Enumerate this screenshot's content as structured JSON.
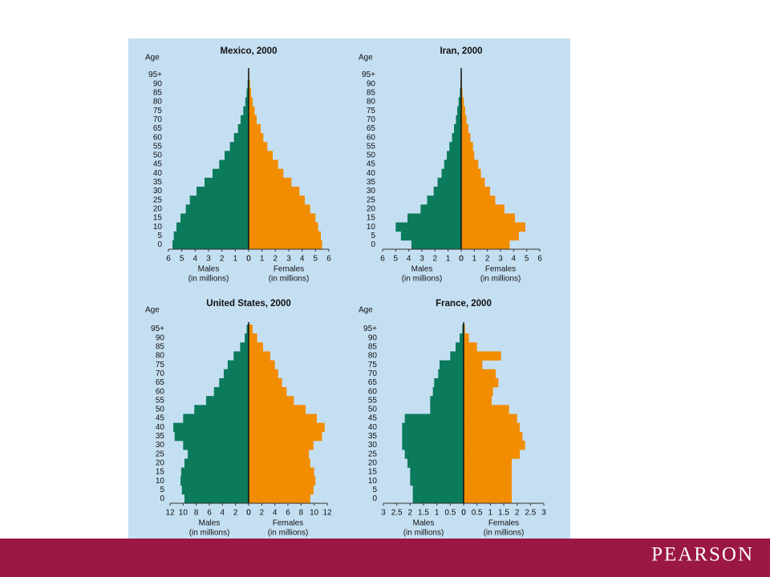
{
  "chart_data": [
    {
      "type": "pyramid",
      "title": "Mexico, 2000",
      "ylabel": "Age",
      "categories": [
        "0",
        "5",
        "10",
        "15",
        "20",
        "25",
        "30",
        "35",
        "40",
        "45",
        "50",
        "55",
        "60",
        "65",
        "70",
        "75",
        "80",
        "85",
        "90",
        "95+"
      ],
      "xlim": [
        0,
        6
      ],
      "xticks": [
        0,
        1,
        2,
        3,
        4,
        5,
        6
      ],
      "series": [
        {
          "name": "Males",
          "unit_label": "(in millions)",
          "color": "#0b7b5c",
          "values": [
            5.7,
            5.6,
            5.4,
            5.1,
            4.7,
            4.4,
            3.9,
            3.3,
            2.7,
            2.2,
            1.8,
            1.4,
            1.1,
            0.8,
            0.6,
            0.4,
            0.25,
            0.15,
            0.08,
            0.03
          ]
        },
        {
          "name": "Females",
          "unit_label": "(in millions)",
          "color": "#f28c00",
          "values": [
            5.5,
            5.4,
            5.2,
            5.0,
            4.6,
            4.2,
            3.8,
            3.2,
            2.6,
            2.2,
            1.8,
            1.4,
            1.1,
            0.9,
            0.6,
            0.45,
            0.3,
            0.18,
            0.1,
            0.04
          ]
        }
      ]
    },
    {
      "type": "pyramid",
      "title": "Iran, 2000",
      "ylabel": "Age",
      "categories": [
        "0",
        "5",
        "10",
        "15",
        "20",
        "25",
        "30",
        "35",
        "40",
        "45",
        "50",
        "55",
        "60",
        "65",
        "70",
        "75",
        "80",
        "85",
        "90",
        "95+"
      ],
      "xlim": [
        0,
        6
      ],
      "xticks": [
        0,
        1,
        2,
        3,
        4,
        5,
        6
      ],
      "series": [
        {
          "name": "Males",
          "unit_label": "(in millions)",
          "color": "#0b7b5c",
          "values": [
            3.8,
            4.6,
            5.0,
            4.1,
            3.1,
            2.6,
            2.1,
            1.8,
            1.5,
            1.3,
            1.1,
            0.9,
            0.7,
            0.55,
            0.4,
            0.3,
            0.2,
            0.1,
            0.05,
            0.02
          ]
        },
        {
          "name": "Females",
          "unit_label": "(in millions)",
          "color": "#f28c00",
          "values": [
            3.7,
            4.4,
            4.9,
            4.1,
            3.3,
            2.6,
            2.2,
            1.8,
            1.5,
            1.3,
            1.0,
            0.9,
            0.7,
            0.55,
            0.4,
            0.3,
            0.2,
            0.1,
            0.05,
            0.02
          ]
        }
      ]
    },
    {
      "type": "pyramid",
      "title": "United States, 2000",
      "ylabel": "Age",
      "categories": [
        "0",
        "5",
        "10",
        "15",
        "20",
        "25",
        "30",
        "35",
        "40",
        "45",
        "50",
        "55",
        "60",
        "65",
        "70",
        "75",
        "80",
        "85",
        "90",
        "95+"
      ],
      "xlim": [
        0,
        12
      ],
      "xticks": [
        0,
        2,
        4,
        6,
        8,
        10,
        12
      ],
      "series": [
        {
          "name": "Males",
          "unit_label": "(in millions)",
          "color": "#0b7b5c",
          "values": [
            9.8,
            10.2,
            10.4,
            10.3,
            9.8,
            9.3,
            10.0,
            11.3,
            11.5,
            10.0,
            8.3,
            6.5,
            5.3,
            4.5,
            3.8,
            3.2,
            2.3,
            1.3,
            0.6,
            0.3
          ]
        },
        {
          "name": "Females",
          "unit_label": "(in millions)",
          "color": "#f28c00",
          "values": [
            9.4,
            9.9,
            10.2,
            10.0,
            9.4,
            9.2,
            9.9,
            11.2,
            11.6,
            10.4,
            8.7,
            6.9,
            5.8,
            5.1,
            4.5,
            4.0,
            3.3,
            2.2,
            1.3,
            0.6
          ]
        }
      ]
    },
    {
      "type": "pyramid",
      "title": "France, 2000",
      "ylabel": "Age",
      "categories": [
        "0",
        "5",
        "10",
        "15",
        "20",
        "25",
        "30",
        "35",
        "40",
        "45",
        "50",
        "55",
        "60",
        "65",
        "70",
        "75",
        "80",
        "85",
        "90",
        "95+"
      ],
      "xlim": [
        0,
        3
      ],
      "xticks": [
        0,
        0.5,
        1,
        1.5,
        2,
        2.5,
        3
      ],
      "series": [
        {
          "name": "Males",
          "unit_label": "(in millions)",
          "color": "#0b7b5c",
          "values": [
            1.9,
            1.9,
            2.0,
            2.0,
            2.1,
            2.2,
            2.3,
            2.3,
            2.3,
            2.2,
            1.25,
            1.25,
            1.15,
            1.1,
            0.95,
            0.9,
            0.5,
            0.3,
            0.15,
            0.05
          ]
        },
        {
          "name": "Females",
          "unit_label": "(in millions)",
          "color": "#f28c00",
          "values": [
            1.8,
            1.8,
            1.8,
            1.8,
            1.8,
            2.1,
            2.3,
            2.2,
            2.1,
            2.0,
            1.7,
            1.05,
            1.1,
            1.3,
            1.2,
            0.7,
            1.4,
            0.5,
            0.2,
            0.05
          ]
        }
      ]
    }
  ],
  "footer": {
    "brand": "PEARSON"
  }
}
